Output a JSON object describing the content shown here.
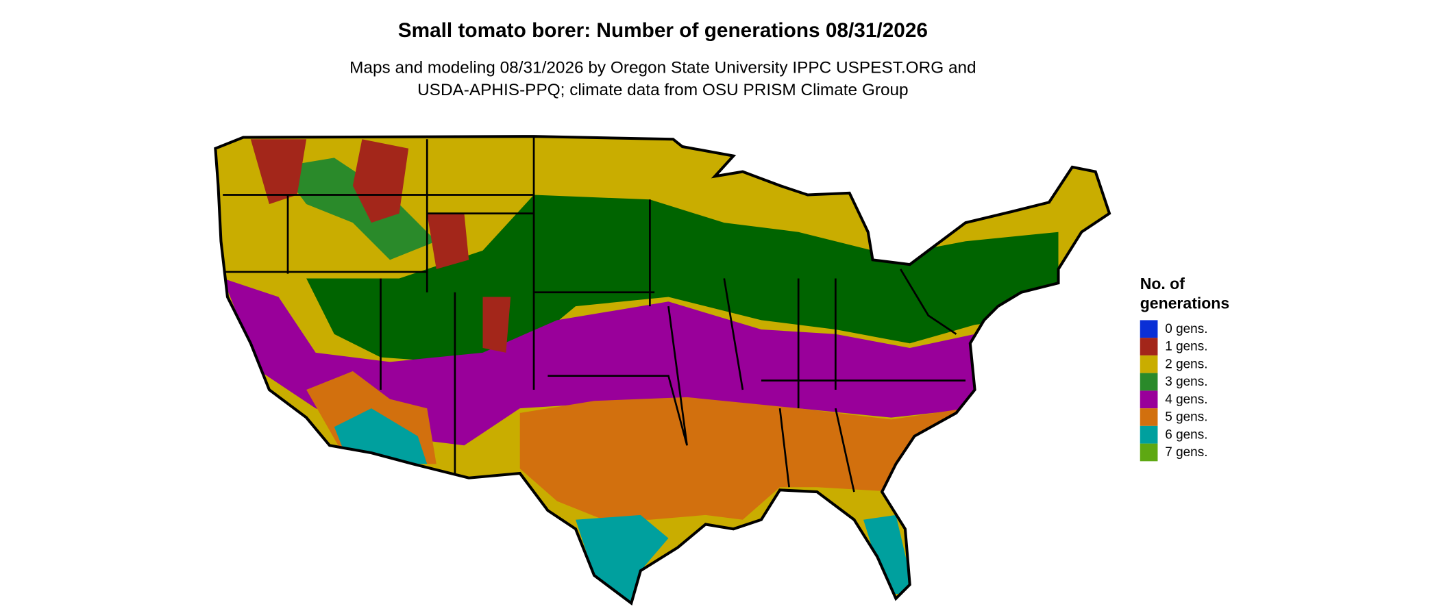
{
  "title": "Small tomato borer: Number of generations 08/31/2026",
  "subtitle": [
    "Maps and modeling 08/31/2026 by Oregon State University IPPC USPEST.ORG and",
    "USDA-APHIS-PPQ; climate data from OSU PRISM Climate Group"
  ],
  "legend": {
    "title": [
      "No. of",
      "generations"
    ],
    "items": [
      {
        "label": "0 gens.",
        "color": "#0a2fd6"
      },
      {
        "label": "1 gens.",
        "color": "#a3261a"
      },
      {
        "label": "2 gens.",
        "color": "#c9ad00"
      },
      {
        "label": "3 gens.",
        "color": "#2a8a2a"
      },
      {
        "label": "4 gens.",
        "color": "#99009a"
      },
      {
        "label": "5 gens.",
        "color": "#d2700e"
      },
      {
        "label": "6 gens.",
        "color": "#00a09e"
      },
      {
        "label": "7 gens.",
        "color": "#5ea812"
      }
    ]
  }
}
